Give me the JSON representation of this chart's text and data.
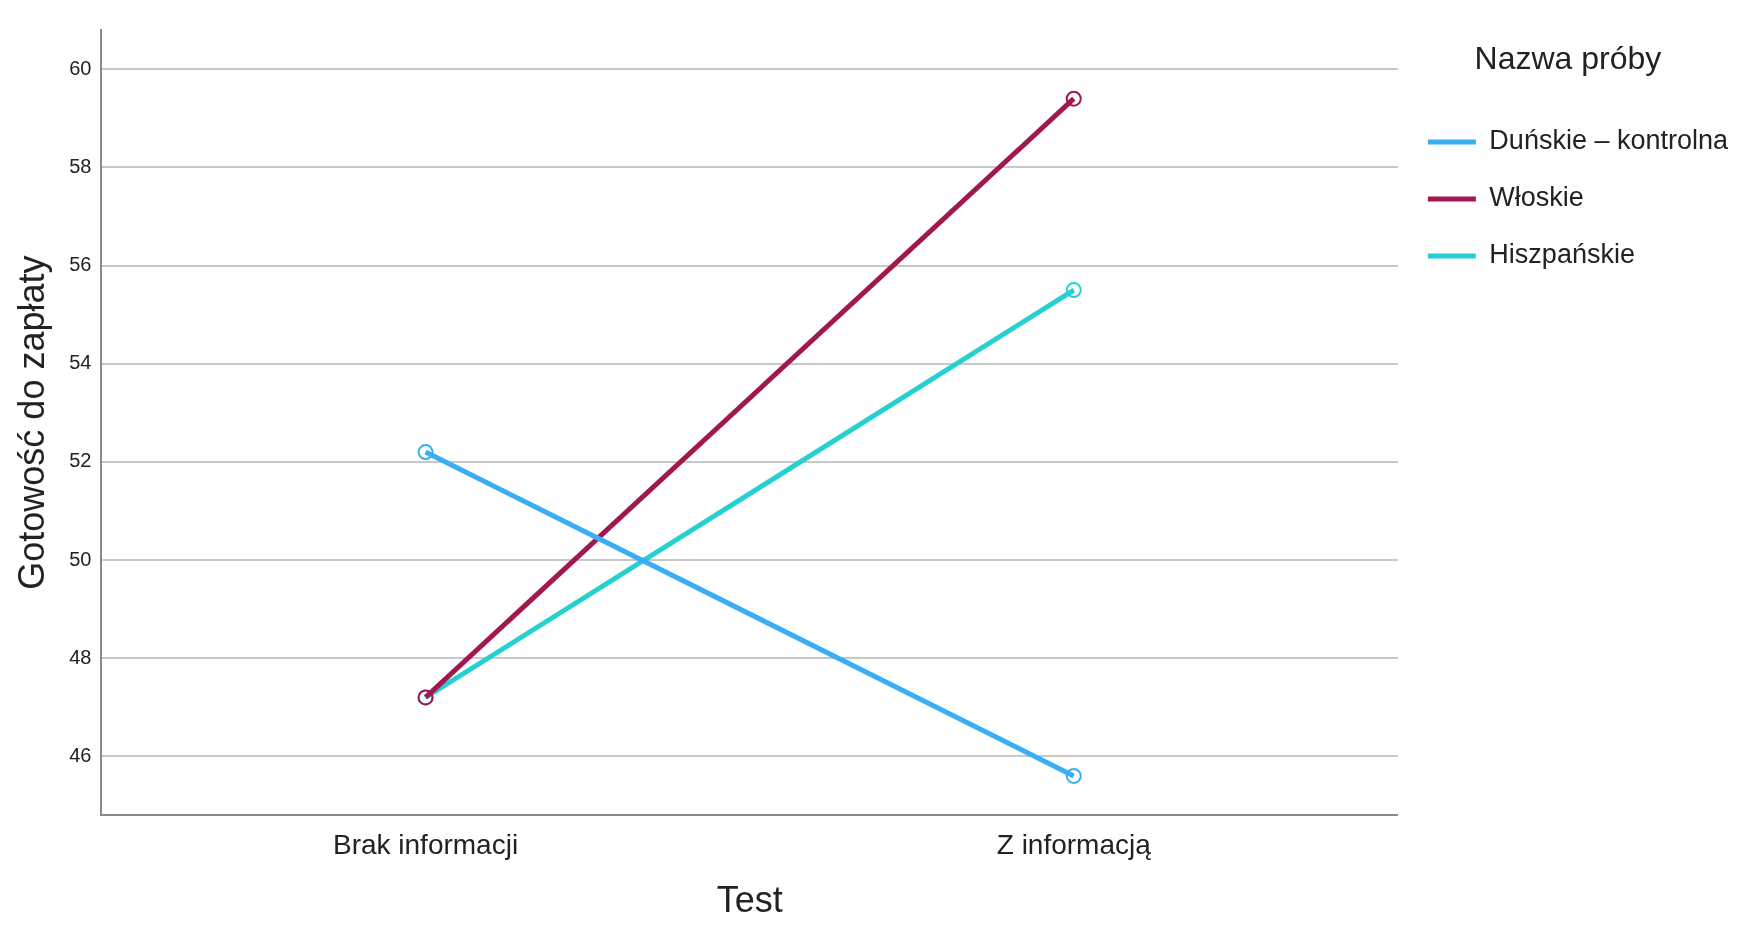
{
  "chart_data": {
    "type": "line",
    "xlabel": "Test",
    "ylabel": "Gotowość do zapłaty",
    "legend_title": "Nazwa próby",
    "categories": [
      "Brak informacji",
      "Z informacją"
    ],
    "series": [
      {
        "name": "Duńskie – kontrolna",
        "color": "#3aaef5",
        "values": [
          52.2,
          45.6
        ]
      },
      {
        "name": "Włoskie",
        "color": "#a1184f",
        "values": [
          47.2,
          59.4
        ]
      },
      {
        "name": "Hiszpańskie",
        "color": "#25d0d0",
        "values": [
          47.2,
          55.5
        ]
      }
    ],
    "ylim": [
      44.8,
      60.8
    ],
    "yticks": [
      46,
      48,
      50,
      52,
      54,
      56,
      58,
      60
    ],
    "grid": "y",
    "legend": "right",
    "marker": "circle",
    "line_style": "solid"
  }
}
